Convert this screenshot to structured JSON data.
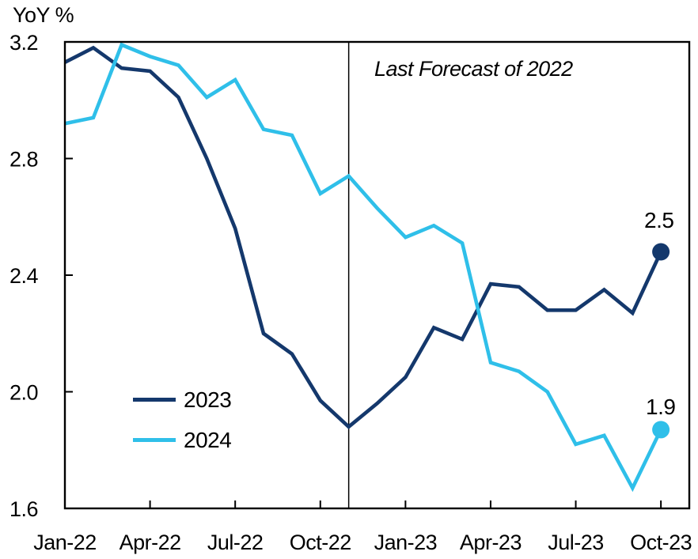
{
  "chart_data": {
    "type": "line",
    "title": "",
    "ylabel": "YoY %",
    "xlabel": "",
    "ylim": [
      1.6,
      3.2
    ],
    "ytick_labels": [
      "3.2",
      "2.8",
      "2.4",
      "2.0",
      "1.6"
    ],
    "x_tick_labels": [
      "Jan-22",
      "Apr-22",
      "Jul-22",
      "Oct-22",
      "Jan-23",
      "Apr-23",
      "Jul-23",
      "Oct-23"
    ],
    "categories": [
      "Jan-22",
      "Feb-22",
      "Mar-22",
      "Apr-22",
      "May-22",
      "Jun-22",
      "Jul-22",
      "Aug-22",
      "Sep-22",
      "Oct-22",
      "Nov-22",
      "Dec-22",
      "Jan-23",
      "Feb-23",
      "Mar-23",
      "Apr-23",
      "May-23",
      "Jun-23",
      "Jul-23",
      "Aug-23",
      "Sep-23",
      "Oct-23"
    ],
    "series": [
      {
        "name": "2023",
        "color": "#14386C",
        "end_label": "2.5",
        "values": [
          3.13,
          3.18,
          3.11,
          3.1,
          3.01,
          2.8,
          2.56,
          2.2,
          2.13,
          1.97,
          1.88,
          1.96,
          2.05,
          2.22,
          2.18,
          2.37,
          2.36,
          2.28,
          2.28,
          2.35,
          2.27,
          2.48
        ]
      },
      {
        "name": "2024",
        "color": "#2FBFE9",
        "end_label": "1.9",
        "values": [
          2.92,
          2.94,
          3.19,
          3.15,
          3.12,
          3.01,
          3.07,
          2.9,
          2.88,
          2.68,
          2.74,
          2.63,
          2.53,
          2.57,
          2.51,
          2.1,
          2.07,
          2.0,
          1.82,
          1.85,
          1.67,
          1.87
        ]
      }
    ],
    "vline_at": "Nov-22",
    "vline_annotation": "Last Forecast of 2022",
    "grid": "off",
    "legend_position": "inside-bottom-left",
    "axis_color": "#000000",
    "text_color": "#000000"
  }
}
